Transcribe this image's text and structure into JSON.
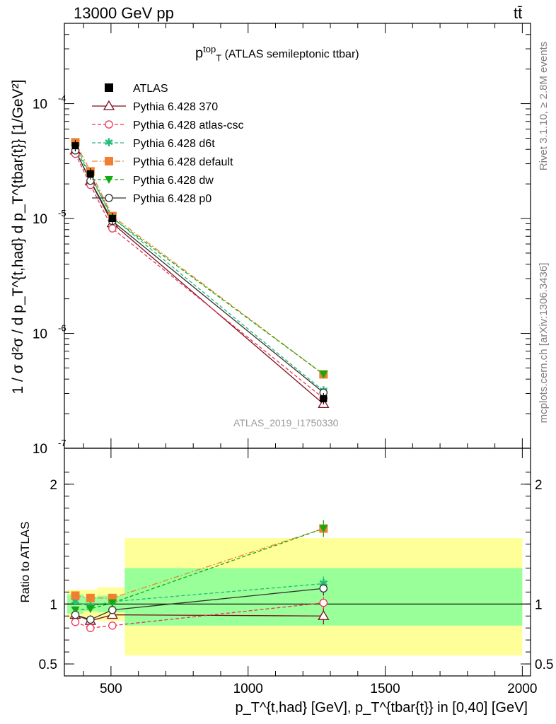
{
  "header": {
    "energy_label": "13000 GeV pp",
    "process_label": "tt̄",
    "rivet_label": "Rivet 3.1.10, ≥ 2.8M events",
    "mcplots_label": "mcplots.cern.ch [arXiv:1306.3436]",
    "analysis_label": "ATLAS_2019_I1750330"
  },
  "chart_data": {
    "type": "line",
    "title": {
      "main": "p",
      "sup": "top",
      "sub": "T",
      "suffix": " (ATLAS semileptonic ttbar)"
    },
    "ylabel": "1 / σ d²σ / d p_T^{t,had} d p_T^{tbar{t}} [1/GeV²]",
    "ratio_ylabel": "Ratio to ATLAS",
    "xlabel": "p_T^{t,had} [GeV], p_T^{tbar{t}} in [0,40] [GeV]",
    "log_y": true,
    "xlim": [
      330,
      2030
    ],
    "ylim": [
      1e-07,
      0.0005
    ],
    "ratio_ylim": [
      0.4,
      2.3
    ],
    "x_ticks": [
      500,
      1000,
      1500,
      2000
    ],
    "x_tick_labels": [
      "500",
      "1000",
      "1500",
      "2000"
    ],
    "y_ticks": [
      1e-07,
      1e-06,
      1e-05,
      0.0001
    ],
    "ratio_ticks": [
      0.5,
      1,
      2
    ],
    "ratio_tick_labels": [
      "0.5",
      "1",
      "2"
    ],
    "legend_position": "top-left",
    "reference": {
      "name": "ATLAS",
      "x": [
        370,
        425,
        505,
        1275
      ],
      "bin_edges": [
        [
          340,
          400
        ],
        [
          400,
          450
        ],
        [
          450,
          550
        ],
        [
          550,
          2000
        ]
      ],
      "y": [
        4.3e-05,
        2.45e-05,
        1e-05,
        2.7e-07
      ],
      "band_inner": [
        [
          0.92,
          1.08
        ],
        [
          0.94,
          1.06
        ],
        [
          0.93,
          1.07
        ],
        [
          0.82,
          1.3
        ]
      ],
      "band_outer": [
        [
          0.88,
          1.12
        ],
        [
          0.88,
          1.12
        ],
        [
          0.86,
          1.14
        ],
        [
          0.57,
          1.55
        ]
      ],
      "color": "#000000"
    },
    "series": [
      {
        "name": "Pythia 6.428 370",
        "color": "#7a0f1e",
        "dash": "",
        "marker": "triangle-open",
        "ratio": [
          0.91,
          0.86,
          0.91,
          0.9
        ],
        "err": [
          0.02,
          0.02,
          0.02,
          0.07
        ]
      },
      {
        "name": "Pythia 6.428 atlas-csc",
        "color": "#ee3355",
        "dash": "5,3",
        "marker": "circle-open",
        "ratio": [
          0.85,
          0.8,
          0.82,
          1.01
        ],
        "err": [
          0.02,
          0.02,
          0.03,
          0.05
        ]
      },
      {
        "name": "Pythia 6.428 d6t",
        "color": "#22bb77",
        "dash": "5,3",
        "marker": "star",
        "ratio": [
          1.02,
          0.98,
          1.02,
          1.17
        ],
        "err": [
          0.02,
          0.02,
          0.03,
          0.06
        ]
      },
      {
        "name": "Pythia 6.428 default",
        "color": "#f08030",
        "dash": "8,3,2,3",
        "marker": "square",
        "ratio": [
          1.07,
          1.05,
          1.05,
          1.63
        ],
        "err": [
          0.03,
          0.02,
          0.03,
          0.07
        ]
      },
      {
        "name": "Pythia 6.428 dw",
        "color": "#11aa11",
        "dash": "5,3",
        "marker": "triangle-down",
        "ratio": [
          0.95,
          0.96,
          1.01,
          1.63
        ],
        "err": [
          0.02,
          0.02,
          0.03,
          0.07
        ]
      },
      {
        "name": "Pythia 6.428 p0",
        "color": "#333333",
        "dash": "",
        "marker": "circle-open",
        "ratio": [
          0.91,
          0.87,
          0.95,
          1.13
        ],
        "err": [
          0.02,
          0.02,
          0.02,
          0.06
        ]
      }
    ]
  }
}
